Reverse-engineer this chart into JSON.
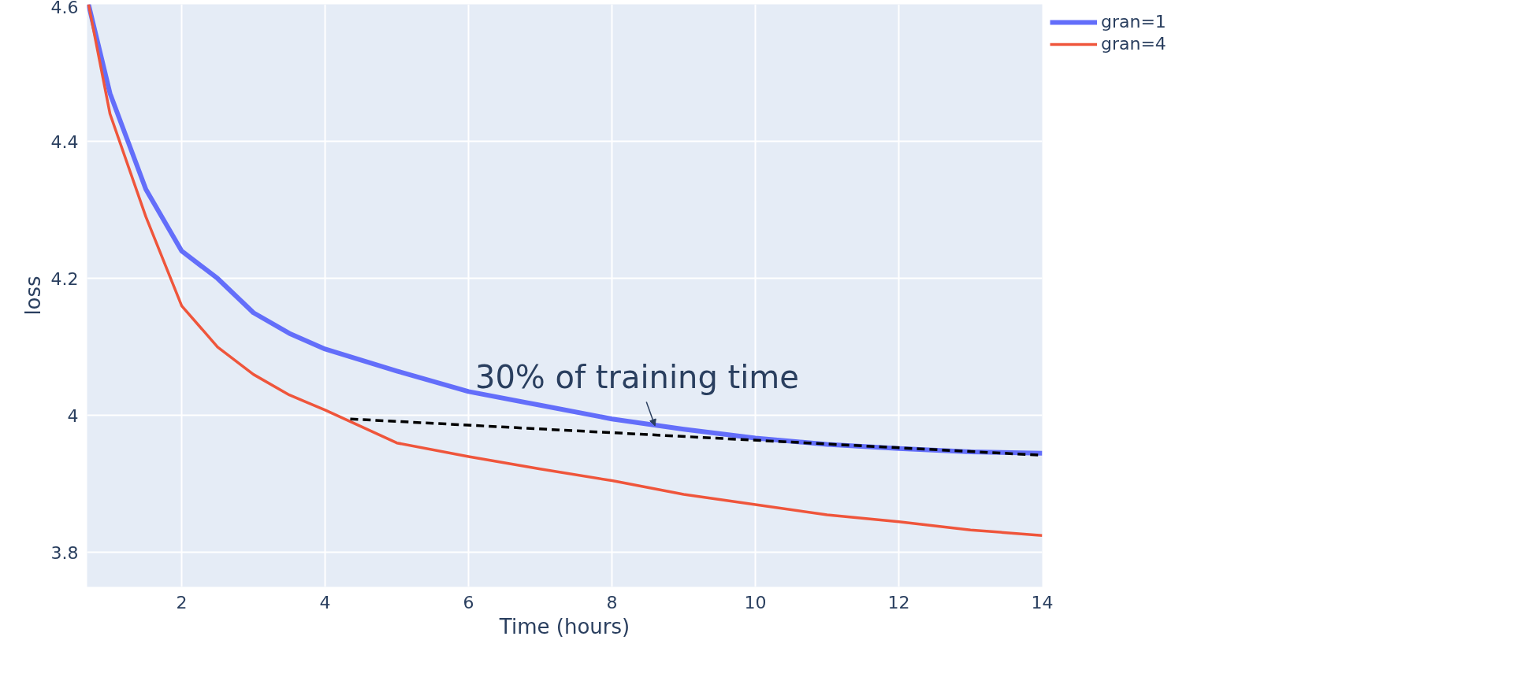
{
  "chart_data": {
    "type": "line",
    "xlabel": "Time (hours)",
    "ylabel": "loss",
    "xlim": [
      0.68,
      14
    ],
    "ylim": [
      3.75,
      4.6
    ],
    "xticks": [
      2,
      4,
      6,
      8,
      10,
      12,
      14
    ],
    "yticks": [
      3.8,
      4,
      4.2,
      4.4,
      4.6
    ],
    "grid": true,
    "legend": "top right",
    "line_style": "solid",
    "series": [
      {
        "name": "gran=1",
        "color": "#636efa",
        "x": [
          0.7,
          1,
          1.5,
          2,
          2.5,
          3,
          3.5,
          4,
          5,
          6,
          7,
          8,
          9,
          10,
          11,
          12,
          13,
          14
        ],
        "values": [
          4.6,
          4.47,
          4.33,
          4.24,
          4.2,
          4.15,
          4.12,
          4.097,
          4.065,
          4.035,
          4.015,
          3.995,
          3.98,
          3.967,
          3.958,
          3.952,
          3.947,
          3.945
        ]
      },
      {
        "name": "gran=4",
        "color": "#ef553b",
        "x": [
          0.7,
          1,
          1.5,
          2,
          2.5,
          3,
          3.5,
          4,
          5,
          6,
          7,
          8,
          9,
          10,
          11,
          12,
          13,
          14
        ],
        "values": [
          4.6,
          4.44,
          4.29,
          4.16,
          4.1,
          4.06,
          4.03,
          4.008,
          3.96,
          3.94,
          3.922,
          3.905,
          3.885,
          3.87,
          3.855,
          3.845,
          3.833,
          3.825
        ]
      },
      {
        "color": "#000000",
        "line_style": "dashed",
        "x": [
          4.35,
          14
        ],
        "values": [
          3.995,
          3.942
        ]
      }
    ],
    "annotations": [
      {
        "text": "30% of training time",
        "x": 8.6,
        "y": 3.985
      }
    ]
  }
}
